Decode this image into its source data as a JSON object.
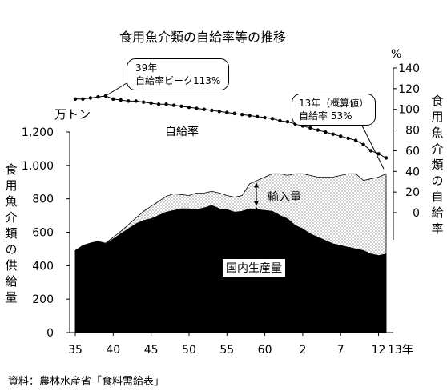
{
  "chart_data": {
    "type": "area",
    "title": "食用魚介類の自給率等の推移",
    "source": "資料：農林水産省「食料需給表」",
    "x": [
      35,
      36,
      37,
      38,
      39,
      40,
      41,
      42,
      43,
      44,
      45,
      46,
      47,
      48,
      49,
      50,
      51,
      52,
      53,
      54,
      55,
      56,
      57,
      58,
      59,
      60,
      61,
      62,
      63,
      1,
      2,
      3,
      4,
      5,
      6,
      7,
      8,
      9,
      10,
      11,
      12,
      13
    ],
    "x_ticks": [
      "35",
      "40",
      "45",
      "50",
      "55",
      "60",
      "2",
      "7",
      "12"
    ],
    "x_unit": "13年",
    "left_axis": {
      "unit": "万トン",
      "label": "食用魚介類の供給量",
      "ticks": [
        "0",
        "200",
        "400",
        "600",
        "800",
        "1,000",
        "1,200"
      ],
      "ylim": [
        0,
        1200
      ]
    },
    "right_axis": {
      "unit": "%",
      "label": "食用魚介類の自給率",
      "ticks": [
        "0",
        "20",
        "40",
        "60",
        "80",
        "100",
        "120",
        "140"
      ],
      "ylim": [
        0,
        140
      ]
    },
    "series": [
      {
        "name": "国内生産量",
        "axis": "left",
        "fill": "#000000",
        "values": [
          490,
          520,
          535,
          545,
          530,
          560,
          590,
          620,
          650,
          670,
          680,
          700,
          720,
          730,
          740,
          740,
          735,
          745,
          760,
          740,
          735,
          720,
          725,
          740,
          735,
          730,
          725,
          700,
          680,
          640,
          620,
          590,
          570,
          550,
          530,
          520,
          510,
          500,
          490,
          470,
          460,
          470
        ]
      },
      {
        "name": "輸入量",
        "axis": "left",
        "fill": "dotted",
        "values": [
          0,
          0,
          0,
          0,
          5,
          10,
          15,
          25,
          35,
          55,
          75,
          85,
          95,
          100,
          85,
          80,
          100,
          90,
          85,
          95,
          85,
          90,
          95,
          150,
          175,
          200,
          225,
          250,
          260,
          310,
          330,
          350,
          360,
          380,
          400,
          420,
          440,
          450,
          420,
          450,
          470,
          480
        ]
      },
      {
        "name": "自給率",
        "axis": "right",
        "marker": "circle",
        "values": [
          110,
          110,
          111,
          112,
          113,
          110,
          109,
          108,
          108,
          107,
          106,
          105,
          105,
          104,
          103,
          102,
          101,
          100,
          99,
          98,
          97,
          96,
          95,
          94,
          93,
          92,
          91,
          89,
          88,
          86,
          84,
          82,
          80,
          78,
          76,
          74,
          72,
          70,
          66,
          60,
          57,
          53
        ]
      }
    ],
    "annotations": [
      {
        "text_line1": "39年",
        "text_line2": "自給率ピーク113%"
      },
      {
        "text_line1": "13年（概算値）",
        "text_line2": "自給率 53%"
      }
    ],
    "series_labels": {
      "rate": "自給率",
      "import": "輸入量",
      "domestic": "国内生産量"
    },
    "grid": false
  }
}
